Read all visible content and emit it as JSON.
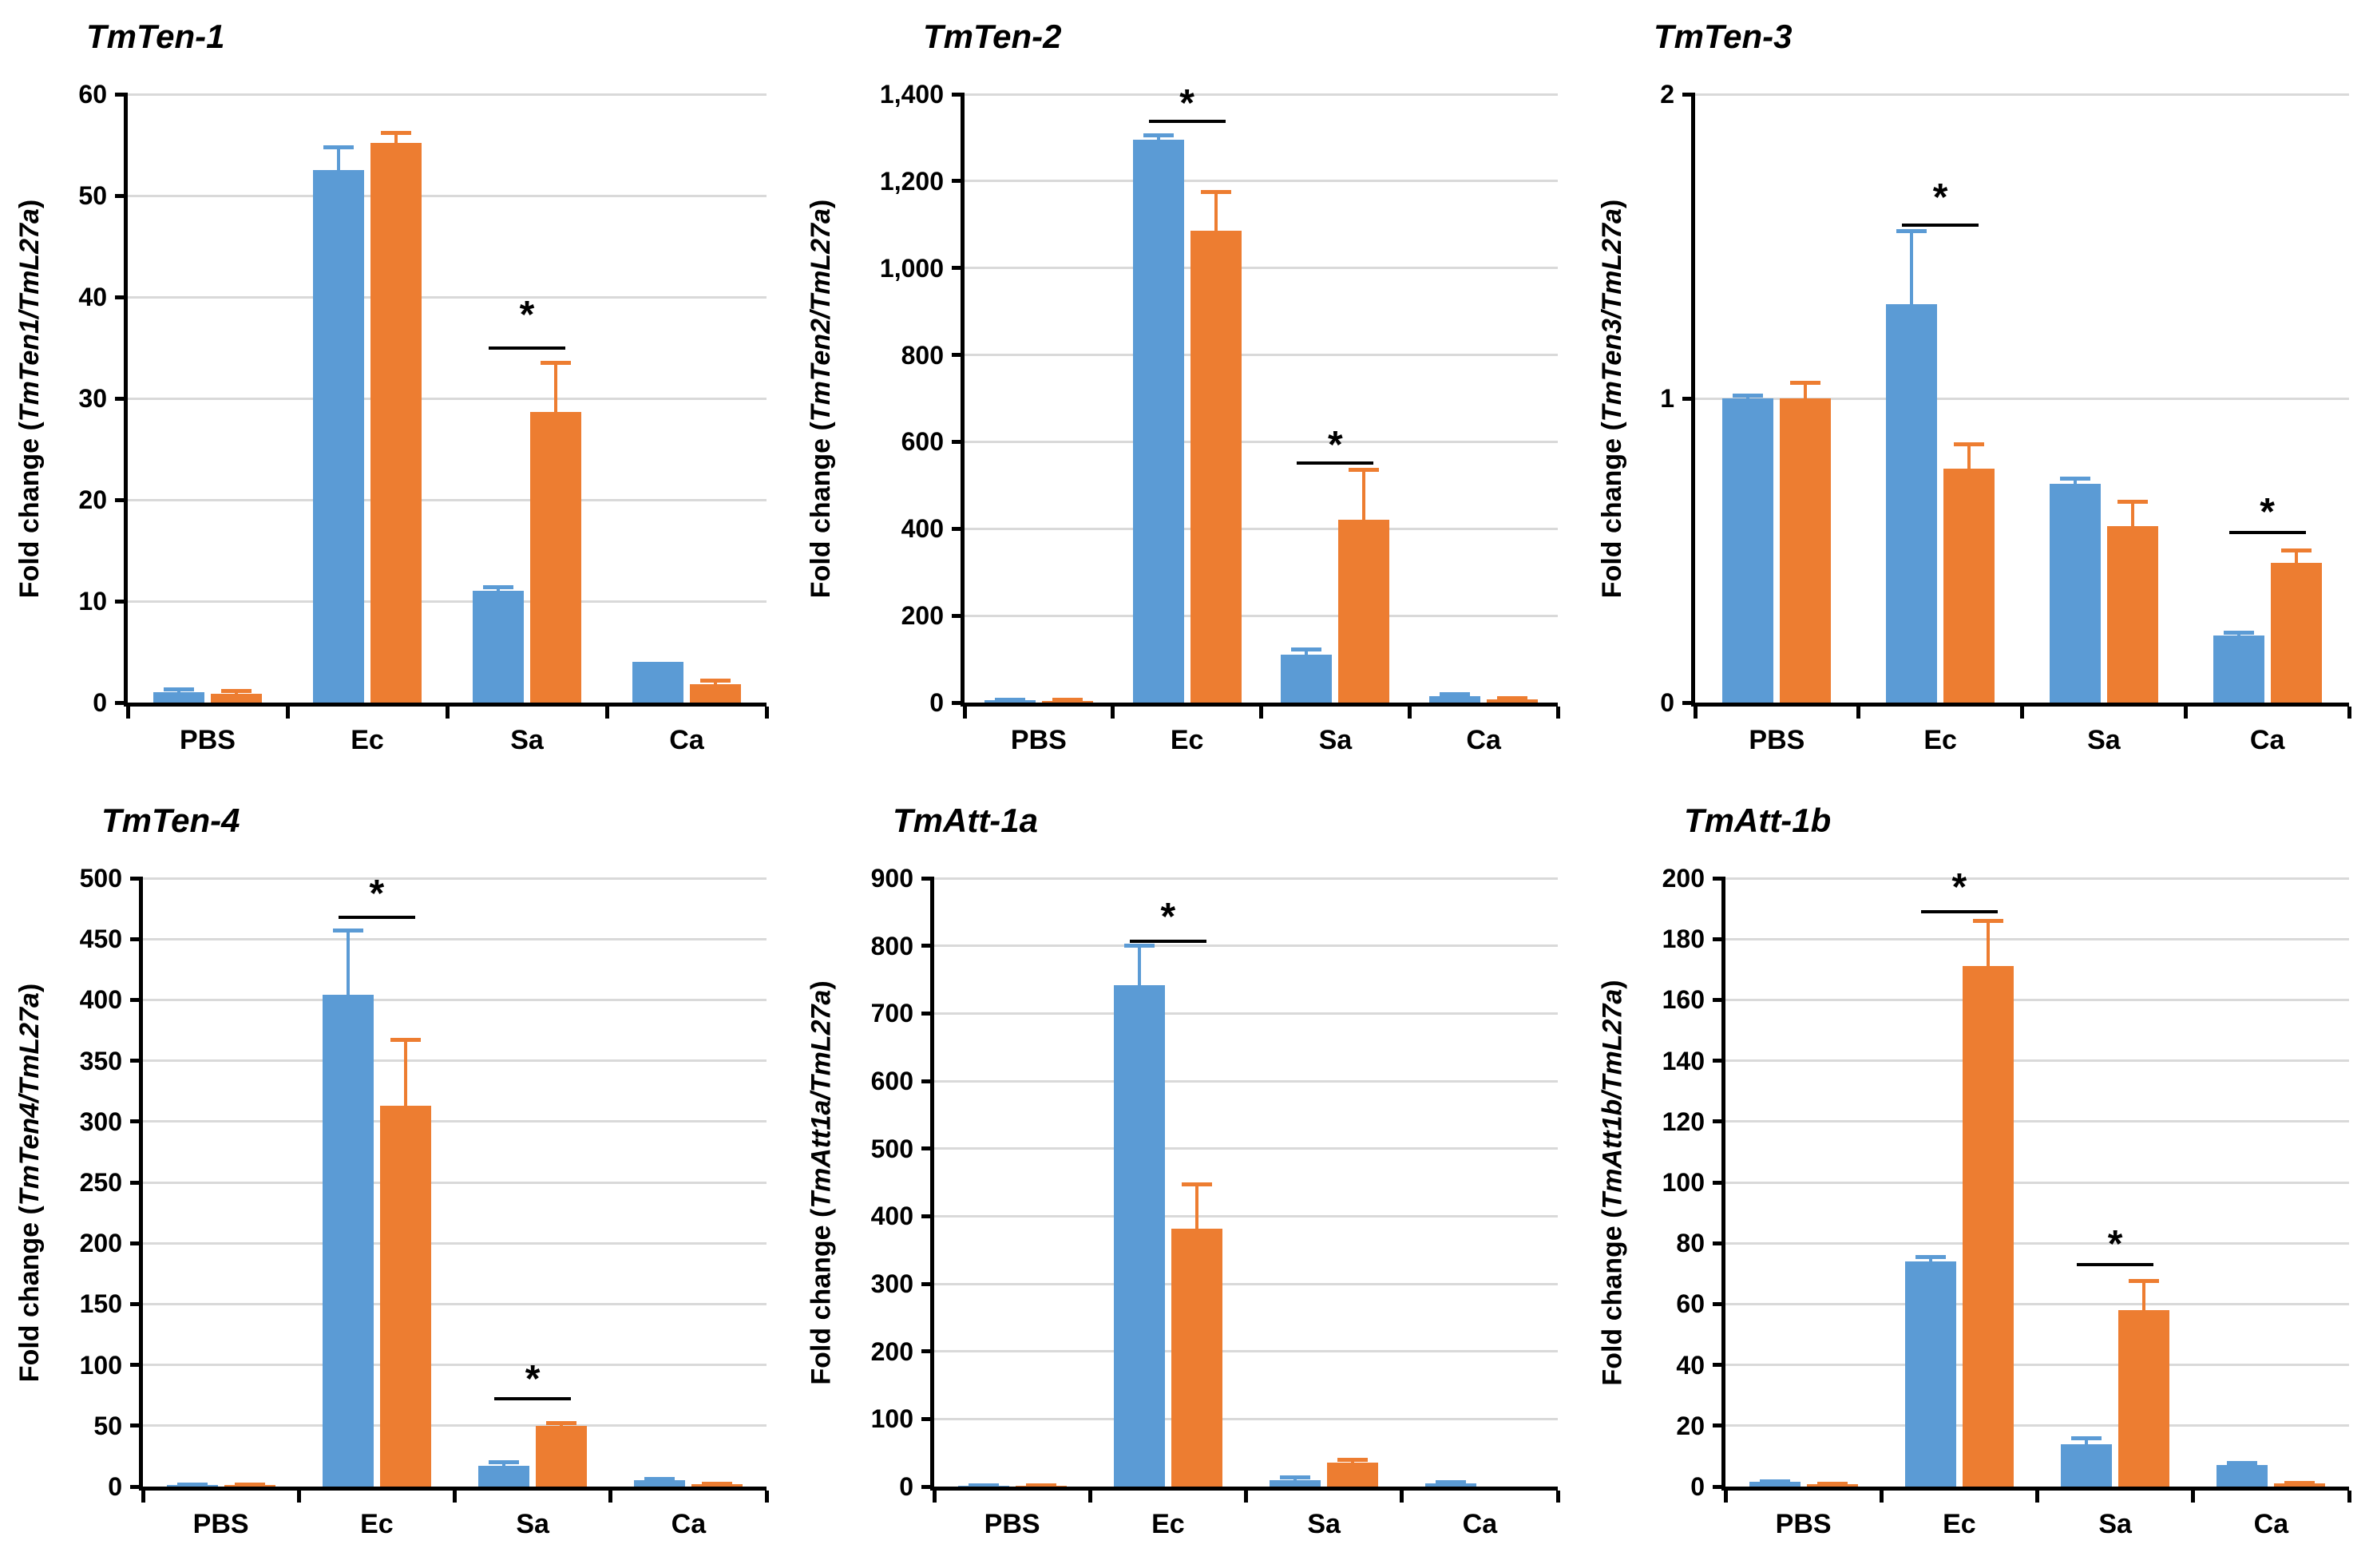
{
  "figure": {
    "background": "#FFFFFF",
    "axis_color": "#000000",
    "gridline_color": "#D9D9D9",
    "text_color": "#000000",
    "series_colors": {
      "series1": "#5B9BD5",
      "series2": "#ED7D31"
    },
    "significance_symbol": "*",
    "categories": [
      "PBS",
      "Ec",
      "Sa",
      "Ca"
    ]
  },
  "chart_data": [
    {
      "type": "bar",
      "title": "TmTen-1",
      "ylabel_prefix": "Fold change (",
      "ylabel_gene": "TmTen1/TmL27a",
      "ylabel_suffix": ")",
      "categories": [
        "PBS",
        "Ec",
        "Sa",
        "Ca"
      ],
      "ylim": [
        0,
        60
      ],
      "ytick_labels": [
        "0",
        "10",
        "20",
        "30",
        "40",
        "50",
        "60"
      ],
      "ytick_values": [
        0,
        10,
        20,
        30,
        40,
        50,
        60
      ],
      "grid": true,
      "legend": "none",
      "series": [
        {
          "name": "series1",
          "color": "#5B9BD5",
          "values": [
            1.0,
            52.5,
            11.0,
            4.0
          ],
          "errors": [
            0.3,
            2.3,
            0.4,
            0
          ]
        },
        {
          "name": "series2",
          "color": "#ED7D31",
          "values": [
            0.9,
            55.2,
            28.7,
            1.8
          ],
          "errors": [
            0.25,
            1.0,
            4.8,
            0.4
          ]
        }
      ],
      "significance": [
        {
          "category": "Sa",
          "cat_index": 2,
          "line_y": 35,
          "star_y": 38.8,
          "symbol": "*"
        }
      ]
    },
    {
      "type": "bar",
      "title": "TmTen-2",
      "ylabel_prefix": "Fold change (",
      "ylabel_gene": "TmTen2/TmL27a",
      "ylabel_suffix": ")",
      "categories": [
        "PBS",
        "Ec",
        "Sa",
        "Ca"
      ],
      "ylim": [
        0,
        1400
      ],
      "ytick_labels": [
        "0",
        "200",
        "400",
        "600",
        "800",
        "1,000",
        "1,200",
        "1,400"
      ],
      "ytick_values": [
        0,
        200,
        400,
        600,
        800,
        1000,
        1200,
        1400
      ],
      "grid": true,
      "legend": "none",
      "series": [
        {
          "name": "series1",
          "color": "#5B9BD5",
          "values": [
            5,
            1295,
            110,
            15
          ],
          "errors": [
            2,
            10,
            12,
            4
          ]
        },
        {
          "name": "series2",
          "color": "#ED7D31",
          "values": [
            4,
            1085,
            420,
            8
          ],
          "errors": [
            2,
            90,
            115,
            2
          ]
        }
      ],
      "significance": [
        {
          "category": "Ec",
          "cat_index": 1,
          "line_y": 1337,
          "star_y": 1392,
          "symbol": "*"
        },
        {
          "category": "Sa",
          "cat_index": 2,
          "line_y": 552,
          "star_y": 607,
          "symbol": "*"
        }
      ]
    },
    {
      "type": "bar",
      "title": "TmTen-3",
      "ylabel_prefix": "Fold change (",
      "ylabel_gene": "TmTen3/TmL27a",
      "ylabel_suffix": ")",
      "categories": [
        "PBS",
        "Ec",
        "Sa",
        "Ca"
      ],
      "ylim": [
        0,
        2
      ],
      "ytick_labels": [
        "0",
        "1",
        "2"
      ],
      "ytick_values": [
        0,
        1,
        2
      ],
      "grid": true,
      "legend": "none",
      "series": [
        {
          "name": "series1",
          "color": "#5B9BD5",
          "values": [
            1.0,
            1.31,
            0.72,
            0.22
          ],
          "errors": [
            0.01,
            0.24,
            0.015,
            0.01
          ]
        },
        {
          "name": "series2",
          "color": "#ED7D31",
          "values": [
            1.0,
            0.77,
            0.58,
            0.46
          ],
          "errors": [
            0.05,
            0.08,
            0.08,
            0.04
          ]
        }
      ],
      "significance": [
        {
          "category": "Ec",
          "cat_index": 1,
          "line_y": 1.57,
          "star_y": 1.68,
          "symbol": "*"
        },
        {
          "category": "Ca",
          "cat_index": 3,
          "line_y": 0.56,
          "star_y": 0.645,
          "symbol": "*"
        }
      ]
    },
    {
      "type": "bar",
      "title": "TmTen-4",
      "ylabel_prefix": "Fold change (",
      "ylabel_gene": "TmTen4/TmL27a",
      "ylabel_suffix": ")",
      "categories": [
        "PBS",
        "Ec",
        "Sa",
        "Ca"
      ],
      "ylim": [
        0,
        500
      ],
      "ytick_labels": [
        "0",
        "50",
        "100",
        "150",
        "200",
        "250",
        "300",
        "350",
        "400",
        "450",
        "500"
      ],
      "ytick_values": [
        0,
        50,
        100,
        150,
        200,
        250,
        300,
        350,
        400,
        450,
        500
      ],
      "grid": true,
      "legend": "none",
      "series": [
        {
          "name": "series1",
          "color": "#5B9BD5",
          "values": [
            1,
            404,
            17,
            5
          ],
          "errors": [
            0.5,
            53,
            3,
            1
          ]
        },
        {
          "name": "series2",
          "color": "#ED7D31",
          "values": [
            1,
            313,
            50,
            2
          ],
          "errors": [
            0.5,
            54,
            2,
            0.5
          ]
        }
      ],
      "significance": [
        {
          "category": "Ec",
          "cat_index": 1,
          "line_y": 468,
          "star_y": 492,
          "symbol": "*"
        },
        {
          "category": "Sa",
          "cat_index": 2,
          "line_y": 72,
          "star_y": 93,
          "symbol": "*"
        }
      ]
    },
    {
      "type": "bar",
      "title": "TmAtt-1a",
      "ylabel_prefix": "Fold change (",
      "ylabel_gene": "TmAtt1a/TmL27a",
      "ylabel_suffix": ")",
      "categories": [
        "PBS",
        "Ec",
        "Sa",
        "Ca"
      ],
      "ylim": [
        0,
        900
      ],
      "ytick_labels": [
        "0",
        "100",
        "200",
        "300",
        "400",
        "500",
        "600",
        "700",
        "800",
        "900"
      ],
      "ytick_values": [
        0,
        100,
        200,
        300,
        400,
        500,
        600,
        700,
        800,
        900
      ],
      "grid": true,
      "legend": "none",
      "series": [
        {
          "name": "series1",
          "color": "#5B9BD5",
          "values": [
            1,
            742,
            10,
            5
          ],
          "errors": [
            0.5,
            58,
            3,
            1
          ]
        },
        {
          "name": "series2",
          "color": "#ED7D31",
          "values": [
            1,
            381,
            35,
            0.5
          ],
          "errors": [
            0.5,
            66,
            4,
            0
          ]
        }
      ],
      "significance": [
        {
          "category": "Ec",
          "cat_index": 1,
          "line_y": 807,
          "star_y": 851,
          "symbol": "*"
        }
      ]
    },
    {
      "type": "bar",
      "title": "TmAtt-1b",
      "ylabel_prefix": "Fold change (",
      "ylabel_gene": "TmAtt1b/TmL27a",
      "ylabel_suffix": ")",
      "categories": [
        "PBS",
        "Ec",
        "Sa",
        "Ca"
      ],
      "ylim": [
        0,
        200
      ],
      "ytick_labels": [
        "0",
        "20",
        "40",
        "60",
        "80",
        "100",
        "120",
        "140",
        "160",
        "180",
        "200"
      ],
      "ytick_values": [
        0,
        20,
        40,
        60,
        80,
        100,
        120,
        140,
        160,
        180,
        200
      ],
      "grid": true,
      "legend": "none",
      "series": [
        {
          "name": "series1",
          "color": "#5B9BD5",
          "values": [
            1.5,
            74,
            14,
            7
          ],
          "errors": [
            0.3,
            1.5,
            1.8,
            0.8
          ]
        },
        {
          "name": "series2",
          "color": "#ED7D31",
          "values": [
            0.7,
            171,
            58,
            1
          ],
          "errors": [
            0.2,
            15,
            9.5,
            0.3
          ]
        }
      ],
      "significance": [
        {
          "category": "Ec",
          "cat_index": 1,
          "line_y": 189,
          "star_y": 199,
          "symbol": "*"
        },
        {
          "category": "Sa",
          "cat_index": 2,
          "line_y": 73,
          "star_y": 81.5,
          "symbol": "*"
        }
      ]
    }
  ]
}
